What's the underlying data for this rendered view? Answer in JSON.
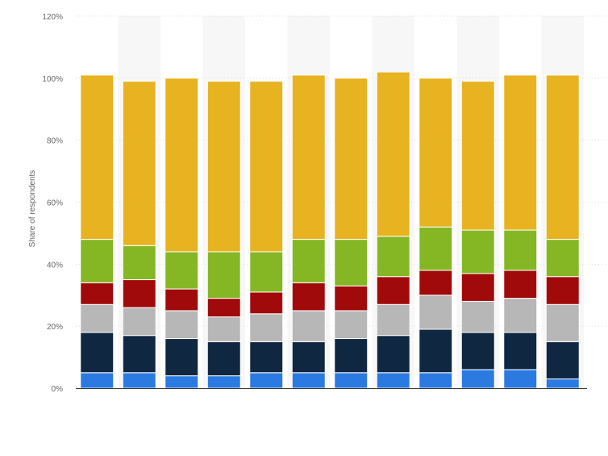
{
  "chart_data": {
    "type": "bar",
    "stacked": true,
    "orientation": "vertical",
    "title": "",
    "xlabel": "",
    "ylabel": "Share of respondents",
    "ylim": [
      0,
      120
    ],
    "y_ticks": [
      "0%",
      "20%",
      "40%",
      "60%",
      "80%",
      "100%",
      "120%"
    ],
    "categories": [
      "",
      "",
      "",
      "",
      "",
      "",
      "",
      "",
      "",
      "",
      "",
      ""
    ],
    "grid": true,
    "legend": "none",
    "series": [
      {
        "color": "#2a7ae2",
        "values": [
          5,
          5,
          4,
          4,
          5,
          5,
          5,
          5,
          5,
          6,
          6,
          3
        ]
      },
      {
        "color": "#0f2741",
        "values": [
          13,
          12,
          12,
          11,
          10,
          10,
          11,
          12,
          14,
          12,
          12,
          12
        ]
      },
      {
        "color": "#b7b7b7",
        "values": [
          9,
          9,
          9,
          8,
          9,
          10,
          9,
          10,
          11,
          10,
          11,
          12
        ]
      },
      {
        "color": "#a10a0a",
        "values": [
          7,
          9,
          7,
          6,
          7,
          9,
          8,
          9,
          8,
          9,
          9,
          9
        ]
      },
      {
        "color": "#85b724",
        "values": [
          14,
          11,
          12,
          15,
          13,
          14,
          15,
          13,
          14,
          14,
          13,
          12
        ]
      },
      {
        "color": "#e8b321",
        "values": [
          53,
          53,
          56,
          55,
          55,
          53,
          52,
          53,
          48,
          48,
          50,
          53
        ]
      }
    ]
  }
}
